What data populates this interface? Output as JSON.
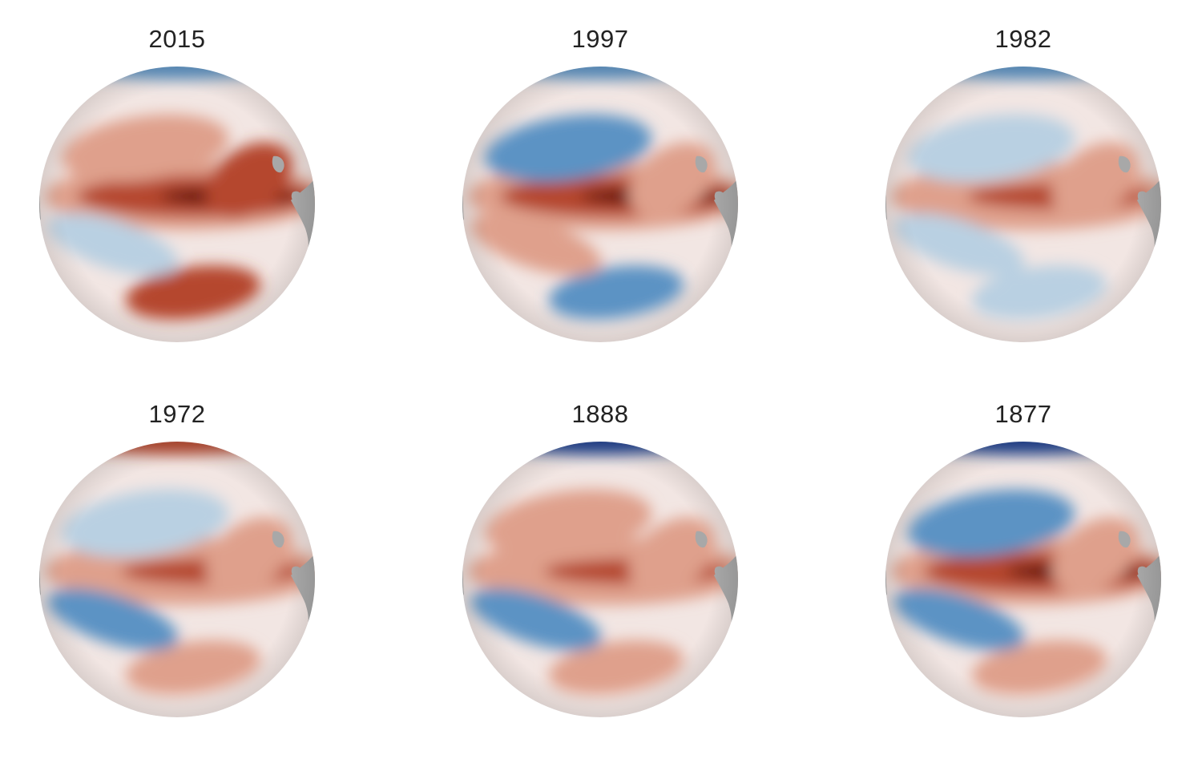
{
  "colors": {
    "land": "#a8a8a8",
    "ocean_neutral": "#f2e6e3",
    "warm_dark": "#5c0a0a",
    "warm_mid": "#b5462d",
    "warm_light": "#dfa08c",
    "cool_light": "#b9d0e2",
    "cool_mid": "#5b93c4",
    "cool_dark": "#1b3f8f",
    "title_text": "#222222"
  },
  "color_scale": [
    "cool_dark",
    "cool_mid",
    "cool_light",
    "ocean_neutral",
    "warm_light",
    "warm_mid",
    "warm_dark"
  ],
  "panels": [
    {
      "year": "2015",
      "anomalies": [
        {
          "region": "equatorial-band",
          "level": 0.95
        },
        {
          "region": "north-pacific",
          "level": 0.4
        },
        {
          "region": "north-america-coast",
          "level": 0.55
        },
        {
          "region": "south-pacific-east",
          "level": 0.55
        },
        {
          "region": "south-pacific-west",
          "level": -0.3
        },
        {
          "region": "arctic-edge",
          "level": -0.6
        }
      ]
    },
    {
      "year": "1997",
      "anomalies": [
        {
          "region": "equatorial-band",
          "level": 1.0
        },
        {
          "region": "north-pacific",
          "level": -0.45
        },
        {
          "region": "north-america-coast",
          "level": 0.35
        },
        {
          "region": "south-pacific-east",
          "level": -0.4
        },
        {
          "region": "south-pacific-west",
          "level": 0.4
        },
        {
          "region": "arctic-edge",
          "level": -0.7
        }
      ]
    },
    {
      "year": "1982",
      "anomalies": [
        {
          "region": "equatorial-band",
          "level": 0.7
        },
        {
          "region": "north-pacific",
          "level": -0.35
        },
        {
          "region": "north-america-coast",
          "level": 0.15
        },
        {
          "region": "south-pacific-east",
          "level": -0.35
        },
        {
          "region": "south-pacific-west",
          "level": -0.3
        },
        {
          "region": "arctic-edge",
          "level": -0.7
        }
      ]
    },
    {
      "year": "1972",
      "anomalies": [
        {
          "region": "equatorial-band",
          "level": 0.65
        },
        {
          "region": "north-pacific",
          "level": -0.35
        },
        {
          "region": "north-america-coast",
          "level": 0.25
        },
        {
          "region": "south-pacific-east",
          "level": 0.3
        },
        {
          "region": "south-pacific-west",
          "level": -0.4
        },
        {
          "region": "arctic-edge",
          "level": 0.5
        }
      ]
    },
    {
      "year": "1888",
      "anomalies": [
        {
          "region": "equatorial-band",
          "level": 0.6
        },
        {
          "region": "north-pacific",
          "level": 0.3
        },
        {
          "region": "north-america-coast",
          "level": 0.3
        },
        {
          "region": "south-pacific-east",
          "level": 0.4
        },
        {
          "region": "south-pacific-west",
          "level": -0.6
        },
        {
          "region": "arctic-edge",
          "level": -0.85
        }
      ]
    },
    {
      "year": "1877",
      "anomalies": [
        {
          "region": "equatorial-band",
          "level": 0.95
        },
        {
          "region": "north-pacific",
          "level": -0.6
        },
        {
          "region": "north-america-coast",
          "level": 0.35
        },
        {
          "region": "south-pacific-east",
          "level": 0.3
        },
        {
          "region": "south-pacific-west",
          "level": -0.75
        },
        {
          "region": "arctic-edge",
          "level": -0.85
        }
      ]
    }
  ]
}
